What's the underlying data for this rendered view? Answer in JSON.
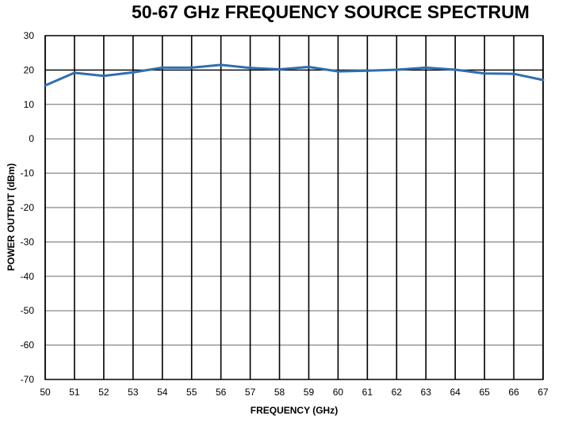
{
  "chart_data": {
    "type": "line",
    "title": "50-67 GHz FREQUENCY SOURCE SPECTRUM",
    "xlabel": "FREQUENCY (GHz)",
    "ylabel": "POWER OUTPUT (dBm)",
    "xlim": [
      50,
      67
    ],
    "ylim": [
      -70,
      30
    ],
    "x_ticks": [
      "50",
      "51",
      "52",
      "53",
      "54",
      "55",
      "56",
      "57",
      "58",
      "59",
      "60",
      "61",
      "62",
      "63",
      "64",
      "65",
      "66",
      "67"
    ],
    "y_ticks": [
      "30",
      "20",
      "10",
      "0",
      "-10",
      "-20",
      "-30",
      "-40",
      "-50",
      "-60",
      "-70"
    ],
    "grid": true,
    "reference_line_y": 20,
    "series_color": "#2f6fb0",
    "series": [
      {
        "x": [
          50,
          51,
          52,
          53,
          54,
          55,
          56,
          57,
          58,
          59,
          60,
          61,
          62,
          63,
          64,
          65,
          66,
          67
        ],
        "values": [
          15.5,
          19.2,
          18.3,
          19.3,
          20.7,
          20.7,
          21.5,
          20.6,
          20.2,
          20.9,
          19.6,
          19.8,
          20.1,
          20.7,
          20.1,
          19.0,
          18.9,
          17.1
        ]
      }
    ]
  }
}
